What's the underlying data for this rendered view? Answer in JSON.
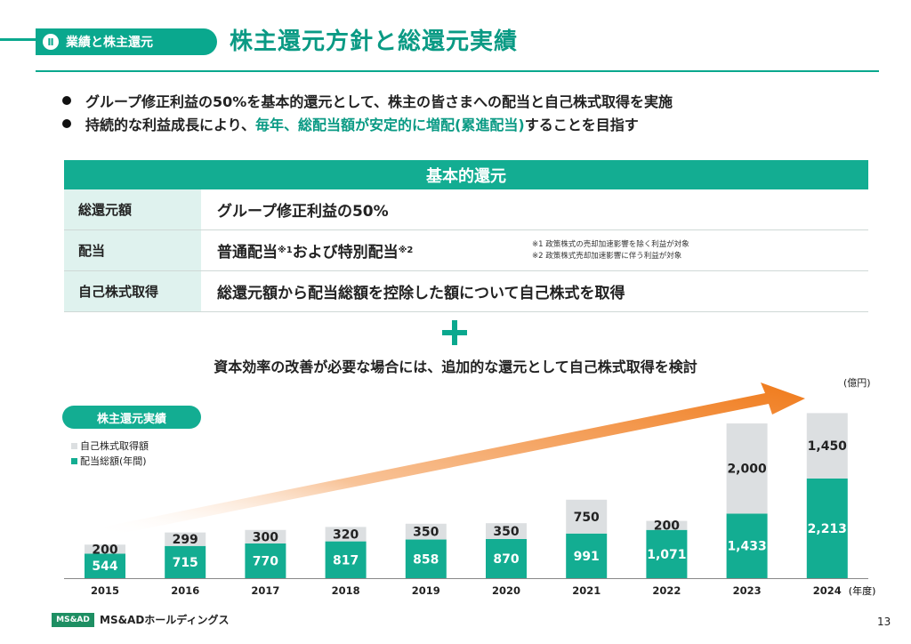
{
  "header": {
    "section_number": "Ⅱ",
    "section_label": "業績と株主還元",
    "title": "株主還元方針と総還元実績"
  },
  "bullets": [
    {
      "parts": [
        "グループ修正利益の50%を基本的還元として、株主の皆さまへの配当と自己株式取得を実施"
      ]
    },
    {
      "parts": [
        "持続的な利益成長により、",
        "毎年、総配当額が安定的に増配(累進配当)",
        "することを目指す"
      ]
    }
  ],
  "policy_table": {
    "heading": "基本的還元",
    "rows": [
      {
        "label": "総還元額",
        "value": "グループ修正利益の50%"
      },
      {
        "label": "配当",
        "value_a": "普通配当",
        "sup_a": "※1",
        "value_b": "および特別配当",
        "sup_b": "※2"
      },
      {
        "label": "自己株式取得",
        "value": "総還元額から配当総額を控除した額について自己株式を取得"
      }
    ],
    "notes": [
      "※1 政策株式の売却加速影響を除く利益が対象",
      "※2 政策株式売却加速影響に伴う利益が対象"
    ]
  },
  "additional_text": "資本効率の改善が必要な場合には、追加的な還元として自己株式取得を検討",
  "chart_badge": "株主還元実績",
  "footer": {
    "logo_mark": "MS&AD",
    "company": "MS&ADホールディングス",
    "page_number": "13"
  },
  "chart_data": {
    "type": "bar",
    "stacked": true,
    "title": "株主還元実績",
    "unit": "(億円)",
    "xlabel_suffix": "(年度)",
    "categories": [
      "2015",
      "2016",
      "2017",
      "2018",
      "2019",
      "2020",
      "2021",
      "2022",
      "2023",
      "2024"
    ],
    "series": [
      {
        "name": "配当総額(年間)",
        "color": "#13ad92",
        "values": [
          544,
          715,
          770,
          817,
          858,
          870,
          991,
          1071,
          1433,
          2213
        ],
        "labels": [
          "544",
          "715",
          "770",
          "817",
          "858",
          "870",
          "991",
          "1,071",
          "1,433",
          "2,213"
        ]
      },
      {
        "name": "自己株式取得額",
        "color": "#dcdfe1",
        "values": [
          200,
          299,
          300,
          320,
          350,
          350,
          750,
          200,
          2000,
          1450
        ],
        "labels": [
          "200",
          "299",
          "300",
          "320",
          "350",
          "350",
          "750",
          "200",
          "2,000",
          "1,450"
        ]
      }
    ],
    "legend": [
      "自己株式取得額",
      "配当総額(年間)"
    ],
    "ylim": [
      0,
      3750
    ],
    "arrow_color": "#f07a1a"
  }
}
